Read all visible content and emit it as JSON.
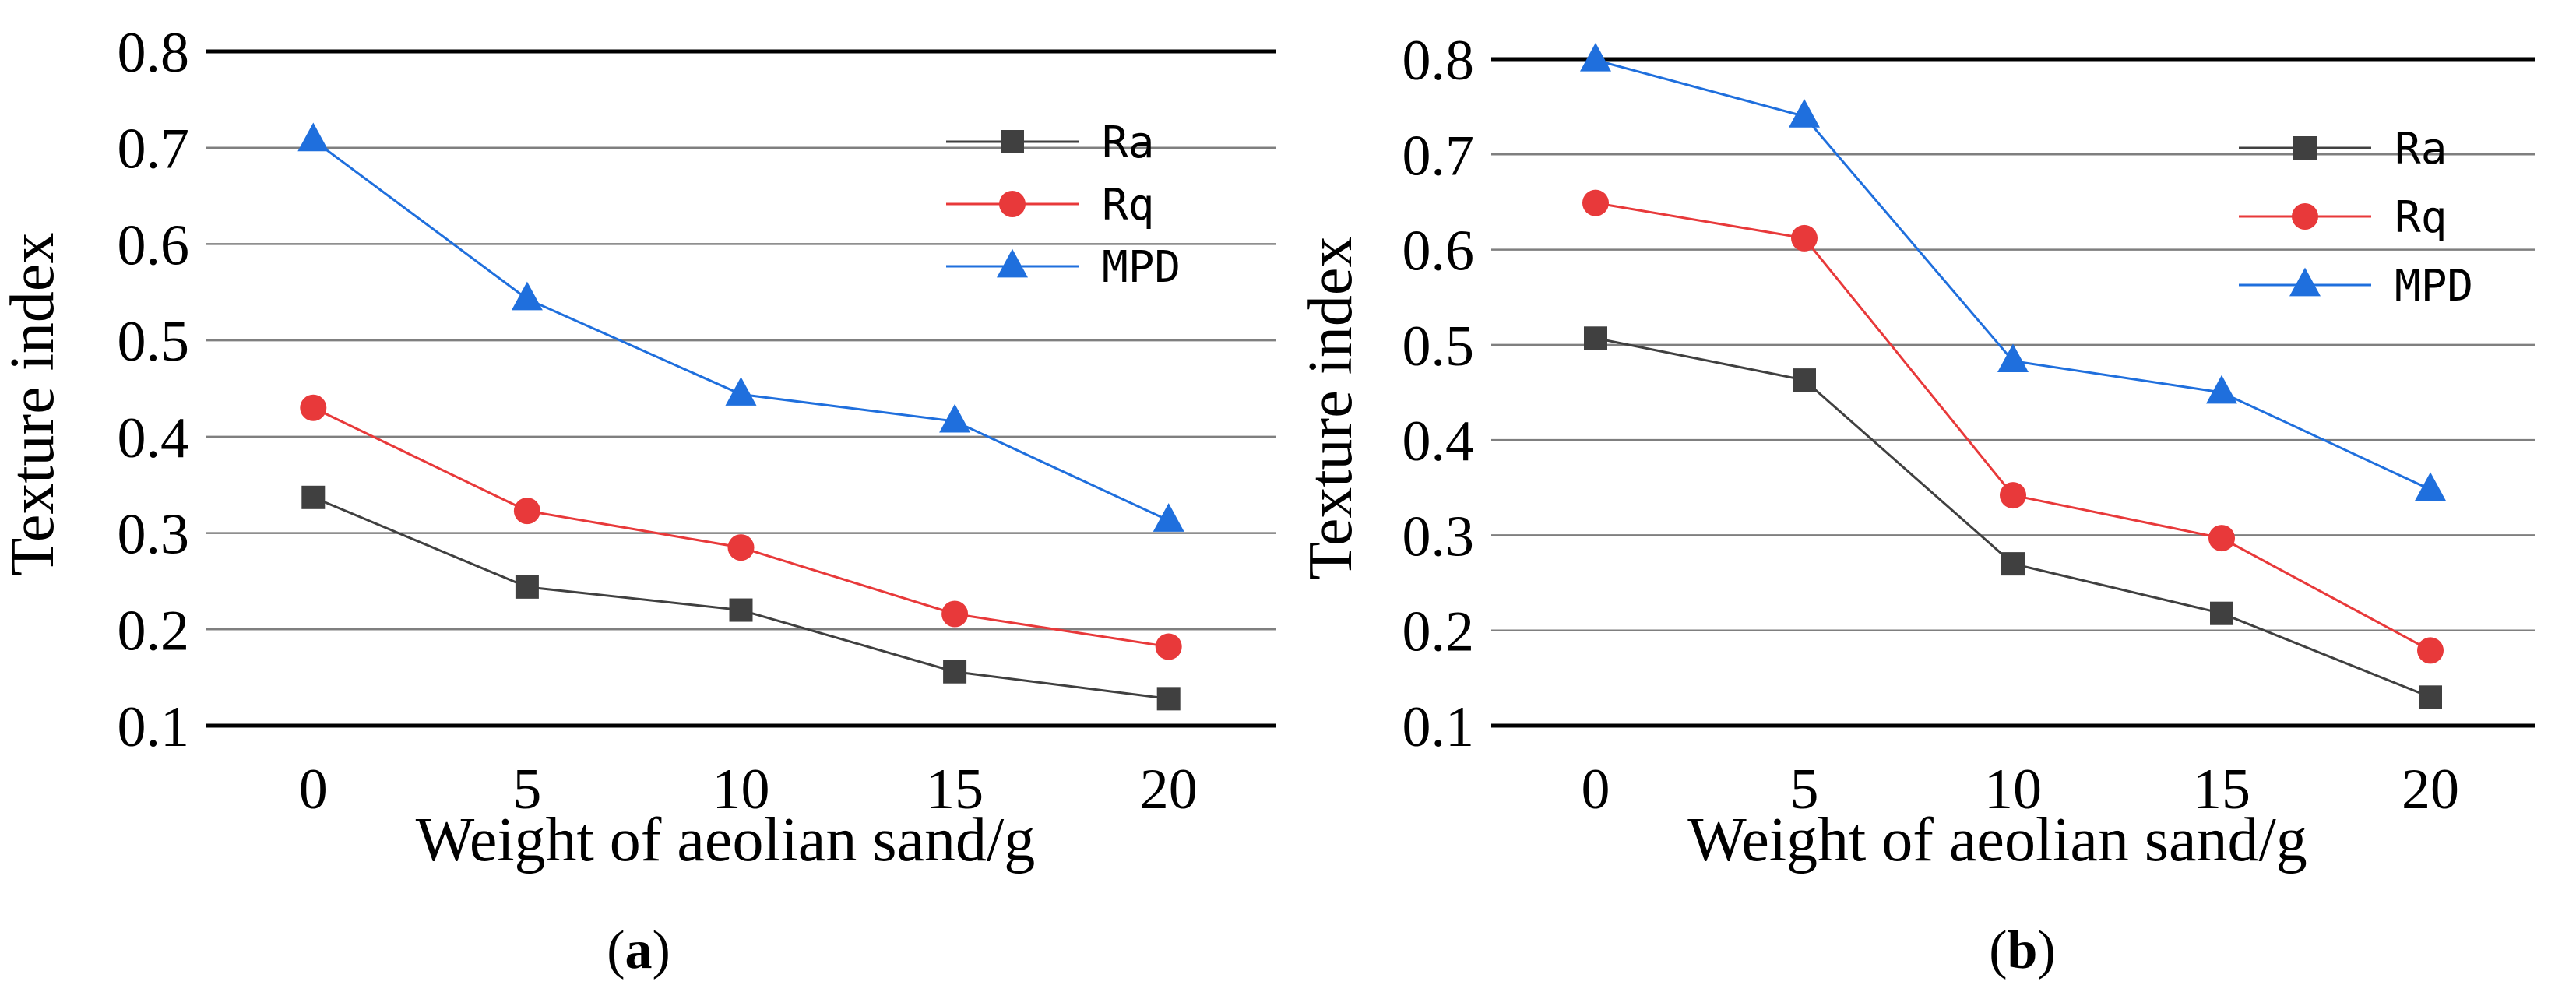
{
  "figure": {
    "colors": {
      "Ra": "#404040",
      "Rq": "#e8393a",
      "MPD": "#1f6fdd",
      "grid": "#7f7f7f",
      "axis": "#000000"
    }
  },
  "chart_data": [
    {
      "type": "line",
      "panel_label": "a",
      "xlabel": "Weight of aeolian sand/g",
      "ylabel": "Texture index",
      "categories": [
        "0",
        "5",
        "10",
        "15",
        "20"
      ],
      "yticks": [
        "0.1",
        "0.2",
        "0.3",
        "0.4",
        "0.5",
        "0.6",
        "0.7",
        "0.8"
      ],
      "ylim": [
        0.1,
        0.8
      ],
      "grid": true,
      "legend_position": "top-right",
      "series": [
        {
          "name": "Ra",
          "marker": "square",
          "values": [
            0.337,
            0.244,
            0.22,
            0.156,
            0.128
          ]
        },
        {
          "name": "Rq",
          "marker": "circle",
          "values": [
            0.43,
            0.323,
            0.285,
            0.216,
            0.182
          ]
        },
        {
          "name": "MPD",
          "marker": "triangle",
          "values": [
            0.708,
            0.543,
            0.444,
            0.416,
            0.313
          ]
        }
      ]
    },
    {
      "type": "line",
      "panel_label": "b",
      "xlabel": "Weight of aeolian sand/g",
      "ylabel": "Texture index",
      "categories": [
        "0",
        "5",
        "10",
        "15",
        "20"
      ],
      "yticks": [
        "0.1",
        "0.2",
        "0.3",
        "0.4",
        "0.5",
        "0.6",
        "0.7",
        "0.8"
      ],
      "ylim": [
        0.1,
        0.8
      ],
      "grid": true,
      "legend_position": "top-right",
      "series": [
        {
          "name": "Ra",
          "marker": "square",
          "values": [
            0.507,
            0.463,
            0.27,
            0.218,
            0.13
          ]
        },
        {
          "name": "Rq",
          "marker": "circle",
          "values": [
            0.649,
            0.612,
            0.342,
            0.297,
            0.179
          ]
        },
        {
          "name": "MPD",
          "marker": "triangle",
          "values": [
            0.799,
            0.74,
            0.483,
            0.45,
            0.348
          ]
        }
      ]
    }
  ]
}
